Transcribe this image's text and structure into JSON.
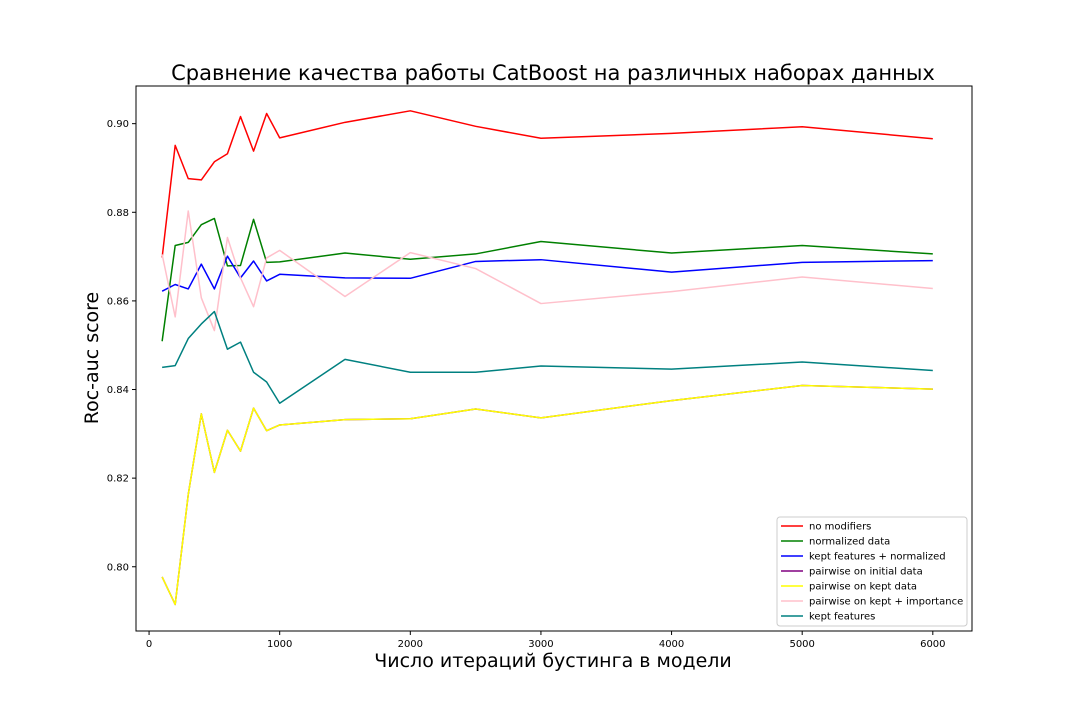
{
  "chart_data": {
    "type": "line",
    "title": "Сравнение качества работы CatBoost на различных наборах данных",
    "xlabel": "Число итераций бустинга в модели",
    "ylabel": "Roc-auc score",
    "xlim": [
      -100,
      6300
    ],
    "ylim": [
      0.7855,
      0.9085
    ],
    "xticks": [
      0,
      1000,
      2000,
      3000,
      4000,
      5000,
      6000
    ],
    "yticks": [
      0.8,
      0.82,
      0.84,
      0.86,
      0.88,
      0.9
    ],
    "xtick_labels": [
      "0",
      "1000",
      "2000",
      "3000",
      "4000",
      "5000",
      "6000"
    ],
    "ytick_labels": [
      "0.80",
      "0.82",
      "0.84",
      "0.86",
      "0.88",
      "0.90"
    ],
    "grid": false,
    "legend_position": "lower right",
    "x": [
      100,
      200,
      300,
      400,
      500,
      600,
      700,
      800,
      900,
      1000,
      1500,
      2000,
      2500,
      3000,
      4000,
      5000,
      6000
    ],
    "series": [
      {
        "name": "no modifiers",
        "color": "#ff0000",
        "values": [
          0.8698,
          0.8951,
          0.8876,
          0.8873,
          0.8914,
          0.8932,
          0.9016,
          0.8938,
          0.9023,
          0.8968,
          0.9003,
          0.9029,
          0.8994,
          0.8967,
          0.8978,
          0.8993,
          0.8966
        ]
      },
      {
        "name": "normalized data",
        "color": "#008000",
        "values": [
          0.8509,
          0.8725,
          0.8732,
          0.8772,
          0.8786,
          0.8679,
          0.868,
          0.8784,
          0.8687,
          0.8688,
          0.8708,
          0.8694,
          0.8706,
          0.8734,
          0.8708,
          0.8725,
          0.8706
        ]
      },
      {
        "name": "kept features + normalized",
        "color": "#0000ff",
        "values": [
          0.8622,
          0.8637,
          0.8627,
          0.8683,
          0.8627,
          0.8701,
          0.8652,
          0.869,
          0.8645,
          0.866,
          0.8652,
          0.8651,
          0.8689,
          0.8693,
          0.8665,
          0.8687,
          0.8691
        ]
      },
      {
        "name": "pairwise on initial data",
        "color": "#800080",
        "values": [
          0.7977,
          0.7915,
          0.8163,
          0.8345,
          0.8213,
          0.8308,
          0.8261,
          0.8358,
          0.8307,
          0.832,
          0.8332,
          0.8334,
          0.8356,
          0.8336,
          0.8375,
          0.8409,
          0.8401
        ]
      },
      {
        "name": "pairwise on kept data",
        "color": "#ffff00",
        "values": [
          0.7977,
          0.7915,
          0.8163,
          0.8345,
          0.8213,
          0.8308,
          0.8261,
          0.8358,
          0.8307,
          0.832,
          0.8332,
          0.8334,
          0.8356,
          0.8336,
          0.8375,
          0.8409,
          0.8401
        ]
      },
      {
        "name": "pairwise on kept + importance",
        "color": "#ffc0cb",
        "values": [
          0.8705,
          0.8564,
          0.8803,
          0.8607,
          0.8533,
          0.8743,
          0.8652,
          0.8587,
          0.8697,
          0.8714,
          0.861,
          0.8709,
          0.8673,
          0.8594,
          0.8621,
          0.8654,
          0.8628
        ]
      },
      {
        "name": "kept features",
        "color": "#008080",
        "values": [
          0.845,
          0.8454,
          0.8515,
          0.8548,
          0.8576,
          0.8491,
          0.8507,
          0.8439,
          0.8417,
          0.8369,
          0.8468,
          0.8439,
          0.8439,
          0.8453,
          0.8446,
          0.8462,
          0.8443
        ]
      }
    ]
  }
}
